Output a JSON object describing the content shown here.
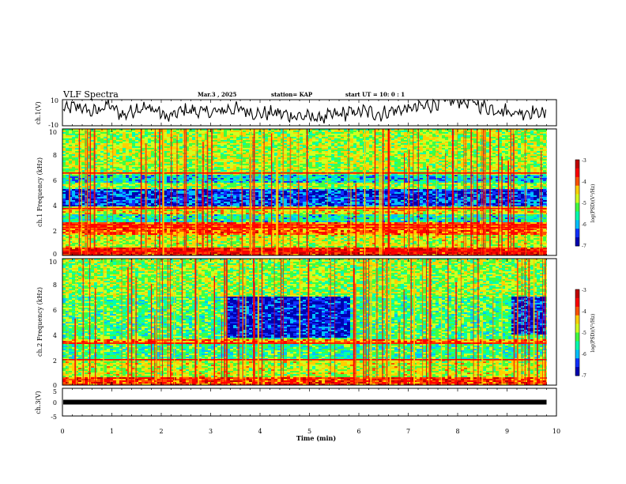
{
  "header": {
    "title": "VLF Spectra",
    "date": "Mar.3 , 2025",
    "station": "station= KAP",
    "start_ut": "start UT = 10: 0 : 1"
  },
  "chart_data": [
    {
      "type": "line",
      "panel": "ch.1 waveform",
      "ylabel": "ch.1(V)",
      "ylim": [
        -10,
        10
      ],
      "yticks": [
        "10",
        "-10"
      ],
      "xlim": [
        0,
        10
      ],
      "x_extent_min": [
        0,
        9.8
      ],
      "series": [
        {
          "values_approx": [
            2,
            5,
            0,
            6,
            -2,
            4,
            3,
            -4,
            2,
            1,
            0,
            3,
            2,
            -1,
            0,
            -2,
            -3,
            -4,
            -2,
            0,
            1,
            -1,
            2,
            3,
            5,
            8,
            10,
            8,
            4,
            2,
            0,
            1,
            -1
          ]
        }
      ]
    },
    {
      "type": "heatmap",
      "panel": "ch.1 spectrogram",
      "ylabel": "ch.1 Frequency (kHz)",
      "ylim": [
        0,
        10
      ],
      "yticks": [
        "0",
        "2",
        "4",
        "6",
        "8",
        "10"
      ],
      "xlim": [
        0,
        10
      ],
      "x_extent_min": [
        0,
        9.8
      ],
      "colorbar": {
        "label": "log(PSD)(V²/Hz)",
        "range": [
          -7,
          -3
        ],
        "ticks": [
          "-3",
          "-4",
          "-5",
          "-6",
          "-7"
        ]
      },
      "bands_khz": [
        {
          "f": [
            0.0,
            0.6
          ],
          "level": -3.6
        },
        {
          "f": [
            0.6,
            1.6
          ],
          "level": -4.8
        },
        {
          "f": [
            1.6,
            2.6
          ],
          "level": -4.0
        },
        {
          "f": [
            2.6,
            3.3
          ],
          "level": -5.6
        },
        {
          "f": [
            3.3,
            3.9
          ],
          "level": -4.6
        },
        {
          "f": [
            3.9,
            5.2
          ],
          "level": -6.4
        },
        {
          "f": [
            5.2,
            5.7
          ],
          "level": -5.0
        },
        {
          "f": [
            5.7,
            6.4
          ],
          "level": -5.8
        },
        {
          "f": [
            6.4,
            10.0
          ],
          "level": -4.9
        }
      ],
      "strong_lines_khz": [
        0.3,
        2.2,
        2.4,
        3.7,
        6.5
      ]
    },
    {
      "type": "heatmap",
      "panel": "ch.2 spectrogram",
      "ylabel": "ch.2 Frequency (kHz)",
      "ylim": [
        0,
        10
      ],
      "yticks": [
        "0",
        "2",
        "4",
        "6",
        "8",
        "10"
      ],
      "xlim": [
        0,
        10
      ],
      "x_extent_min": [
        0,
        9.8
      ],
      "colorbar": {
        "label": "log(PSD)(V²/Hz)",
        "range": [
          -7,
          -3
        ],
        "ticks": [
          "-3",
          "-4",
          "-5",
          "-6",
          "-7"
        ]
      },
      "bands_khz": [
        {
          "f": [
            0.0,
            0.6
          ],
          "level": -3.8
        },
        {
          "f": [
            0.6,
            2.0
          ],
          "level": -4.8
        },
        {
          "f": [
            2.0,
            3.2
          ],
          "level": -5.4
        },
        {
          "f": [
            3.2,
            3.6
          ],
          "level": -4.2
        },
        {
          "f": [
            3.6,
            7.0
          ],
          "level": -5.3
        },
        {
          "f": [
            7.0,
            10.0
          ],
          "level": -5.0
        }
      ],
      "dark_patches": [
        {
          "t_min": [
            3.3,
            5.8
          ],
          "f_khz": [
            3.8,
            7.0
          ],
          "level": -6.6
        },
        {
          "t_min": [
            9.1,
            9.8
          ],
          "f_khz": [
            4.0,
            7.0
          ],
          "level": -6.5
        }
      ],
      "strong_lines_khz": [
        2.0,
        3.3
      ]
    },
    {
      "type": "line",
      "panel": "ch.3 waveform",
      "ylabel": "ch.3(V)",
      "ylim": [
        -5,
        5
      ],
      "yticks": [
        "5",
        "0",
        "-5"
      ],
      "xlim": [
        0,
        10
      ],
      "x_extent_min": [
        0,
        9.8
      ],
      "series": [
        {
          "constant_value": 0
        }
      ]
    }
  ],
  "xaxis": {
    "label": "Time (min)",
    "ticks": [
      "0",
      "1",
      "2",
      "3",
      "4",
      "5",
      "6",
      "7",
      "8",
      "9",
      "10"
    ]
  },
  "colors": {
    "colormap": [
      "#0000b0",
      "#1030ff",
      "#00c0ff",
      "#00ffb0",
      "#40ff40",
      "#d0ff20",
      "#ffd000",
      "#ff5000",
      "#ff0000",
      "#c00000"
    ]
  }
}
